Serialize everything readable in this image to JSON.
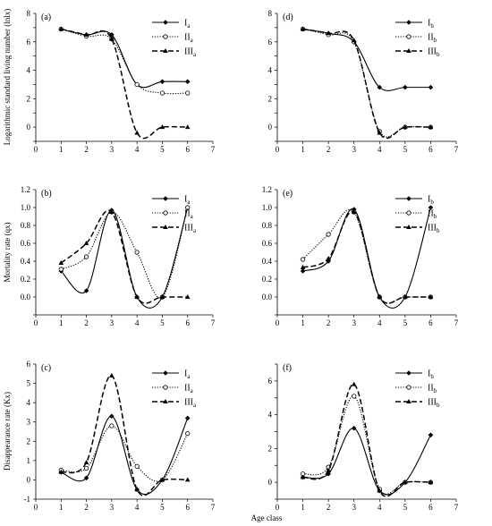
{
  "x_axis_label": "Age class",
  "row_ylabels": [
    "Logarithmic standard living number (lnlx)",
    "Mortality rate (qx)",
    "Disappearance rate (Kx)"
  ],
  "colors": {
    "line": "#000000",
    "background": "#ffffff"
  },
  "chart_data": [
    {
      "type": "line",
      "panel": "(a)",
      "ylim": [
        -1,
        8
      ],
      "yticks": [
        -1,
        0,
        1,
        2,
        3,
        4,
        5,
        6,
        7,
        8
      ],
      "ytick_labels": [
        "",
        "0",
        "",
        "2",
        "",
        "4",
        "",
        "6",
        "",
        "8"
      ],
      "xlim": [
        0,
        7
      ],
      "xticks": [
        0,
        1,
        2,
        3,
        4,
        5,
        6,
        7
      ],
      "x": [
        1,
        2,
        3,
        4,
        5,
        6
      ],
      "legend_position": "top-right",
      "series": [
        {
          "name": "I",
          "sub": "a",
          "style": "solid",
          "marker": "filled-diamond",
          "values": [
            6.9,
            6.5,
            6.5,
            3.0,
            3.2,
            3.2
          ]
        },
        {
          "name": "II",
          "sub": "a",
          "style": "dotted",
          "marker": "open-circle",
          "values": [
            6.9,
            6.4,
            6.2,
            3.0,
            2.4,
            2.4
          ]
        },
        {
          "name": "III",
          "sub": "a",
          "style": "dashed",
          "marker": "filled-triangle",
          "values": [
            6.9,
            6.5,
            6.2,
            -0.4,
            0.0,
            0.0
          ]
        }
      ]
    },
    {
      "type": "line",
      "panel": "(d)",
      "ylim": [
        -1,
        8
      ],
      "yticks": [
        -1,
        0,
        1,
        2,
        3,
        4,
        5,
        6,
        7,
        8
      ],
      "ytick_labels": [
        "",
        "0",
        "",
        "2",
        "",
        "4",
        "",
        "6",
        "",
        "8"
      ],
      "xlim": [
        0,
        7
      ],
      "xticks": [
        0,
        1,
        2,
        3,
        4,
        5,
        6,
        7
      ],
      "x": [
        1,
        2,
        3,
        4,
        5,
        6
      ],
      "legend_position": "top-right",
      "series": [
        {
          "name": "I",
          "sub": "b",
          "style": "solid",
          "marker": "filled-diamond",
          "values": [
            6.9,
            6.6,
            6.0,
            2.8,
            2.8,
            2.8
          ]
        },
        {
          "name": "II",
          "sub": "b",
          "style": "dotted",
          "marker": "open-circle",
          "values": [
            6.9,
            6.5,
            6.0,
            -0.3,
            0.0,
            0.0
          ]
        },
        {
          "name": "III",
          "sub": "b",
          "style": "dashed",
          "marker": "filled-triangle",
          "values": [
            6.9,
            6.6,
            6.1,
            -0.4,
            0.0,
            0.0
          ]
        }
      ]
    },
    {
      "type": "line",
      "panel": "(b)",
      "ylim": [
        -0.2,
        1.2
      ],
      "yticks": [
        -0.2,
        0.0,
        0.2,
        0.4,
        0.6,
        0.8,
        1.0,
        1.2
      ],
      "ytick_labels": [
        "",
        "0.0",
        "0.2",
        "0.4",
        "0.6",
        "0.8",
        "1.0",
        "1.2"
      ],
      "xlim": [
        0,
        7
      ],
      "xticks": [
        0,
        1,
        2,
        3,
        4,
        5,
        6,
        7
      ],
      "x": [
        1,
        2,
        3,
        4,
        5,
        6
      ],
      "legend_position": "top-right",
      "series": [
        {
          "name": "I",
          "sub": "a",
          "style": "solid",
          "marker": "filled-diamond",
          "values": [
            0.29,
            0.07,
            0.97,
            0.0,
            0.0,
            1.0
          ]
        },
        {
          "name": "II",
          "sub": "a",
          "style": "dotted",
          "marker": "open-circle",
          "values": [
            0.31,
            0.45,
            0.95,
            0.5,
            0.0,
            1.0
          ]
        },
        {
          "name": "III",
          "sub": "a",
          "style": "dashed",
          "marker": "filled-triangle",
          "values": [
            0.38,
            0.6,
            0.95,
            0.0,
            0.0,
            0.0
          ]
        }
      ]
    },
    {
      "type": "line",
      "panel": "(e)",
      "ylim": [
        -0.2,
        1.2
      ],
      "yticks": [
        -0.2,
        0.0,
        0.2,
        0.4,
        0.6,
        0.8,
        1.0,
        1.2
      ],
      "ytick_labels": [
        "",
        "0.0",
        "0.2",
        "0.4",
        "0.6",
        "0.8",
        "1.0",
        "1.2"
      ],
      "xlim": [
        0,
        7
      ],
      "xticks": [
        0,
        1,
        2,
        3,
        4,
        5,
        6,
        7
      ],
      "x": [
        1,
        2,
        3,
        4,
        5,
        6
      ],
      "legend_position": "top-right",
      "series": [
        {
          "name": "I",
          "sub": "b",
          "style": "solid",
          "marker": "filled-diamond",
          "values": [
            0.29,
            0.4,
            0.98,
            0.0,
            0.0,
            1.0
          ]
        },
        {
          "name": "II",
          "sub": "b",
          "style": "dotted",
          "marker": "open-circle",
          "values": [
            0.42,
            0.7,
            0.95,
            0.0,
            0.0,
            0.0
          ]
        },
        {
          "name": "III",
          "sub": "b",
          "style": "dashed",
          "marker": "filled-triangle",
          "values": [
            0.33,
            0.43,
            0.95,
            0.0,
            0.0,
            0.0
          ]
        }
      ]
    },
    {
      "type": "line",
      "panel": "(c)",
      "ylim": [
        -1,
        6
      ],
      "yticks": [
        -1,
        0,
        1,
        2,
        3,
        4,
        5,
        6
      ],
      "ytick_labels": [
        "-1",
        "0",
        "1",
        "2",
        "3",
        "4",
        "5",
        "6"
      ],
      "xlim": [
        0,
        7
      ],
      "xticks": [
        0,
        1,
        2,
        3,
        4,
        5,
        6,
        7
      ],
      "x": [
        1,
        2,
        3,
        4,
        5,
        6
      ],
      "legend_position": "top-right",
      "series": [
        {
          "name": "I",
          "sub": "a",
          "style": "solid",
          "marker": "filled-diamond",
          "values": [
            0.4,
            0.1,
            3.3,
            -0.5,
            0.0,
            3.2
          ]
        },
        {
          "name": "II",
          "sub": "a",
          "style": "dotted",
          "marker": "open-circle",
          "values": [
            0.5,
            0.6,
            2.8,
            0.7,
            0.0,
            2.4
          ]
        },
        {
          "name": "III",
          "sub": "a",
          "style": "dashed",
          "marker": "filled-triangle",
          "values": [
            0.4,
            0.9,
            5.4,
            -0.5,
            0.0,
            0.0
          ]
        }
      ]
    },
    {
      "type": "line",
      "panel": "(f)",
      "ylim": [
        -1,
        7
      ],
      "yticks": [
        -1,
        0,
        1,
        2,
        3,
        4,
        5,
        6,
        7
      ],
      "ytick_labels": [
        "",
        "0",
        "",
        "2",
        "",
        "4",
        "",
        "6",
        ""
      ],
      "xlim": [
        0,
        7
      ],
      "xticks": [
        0,
        1,
        2,
        3,
        4,
        5,
        6,
        7
      ],
      "x": [
        1,
        2,
        3,
        4,
        5,
        6
      ],
      "legend_position": "top-right",
      "series": [
        {
          "name": "I",
          "sub": "b",
          "style": "solid",
          "marker": "filled-diamond",
          "values": [
            0.3,
            0.5,
            3.2,
            -0.5,
            0.0,
            2.8
          ]
        },
        {
          "name": "II",
          "sub": "b",
          "style": "dotted",
          "marker": "open-circle",
          "values": [
            0.5,
            0.9,
            5.1,
            -0.4,
            0.0,
            0.0
          ]
        },
        {
          "name": "III",
          "sub": "b",
          "style": "dashed",
          "marker": "filled-triangle",
          "values": [
            0.3,
            0.7,
            5.8,
            -0.5,
            0.0,
            0.0
          ]
        }
      ]
    }
  ]
}
